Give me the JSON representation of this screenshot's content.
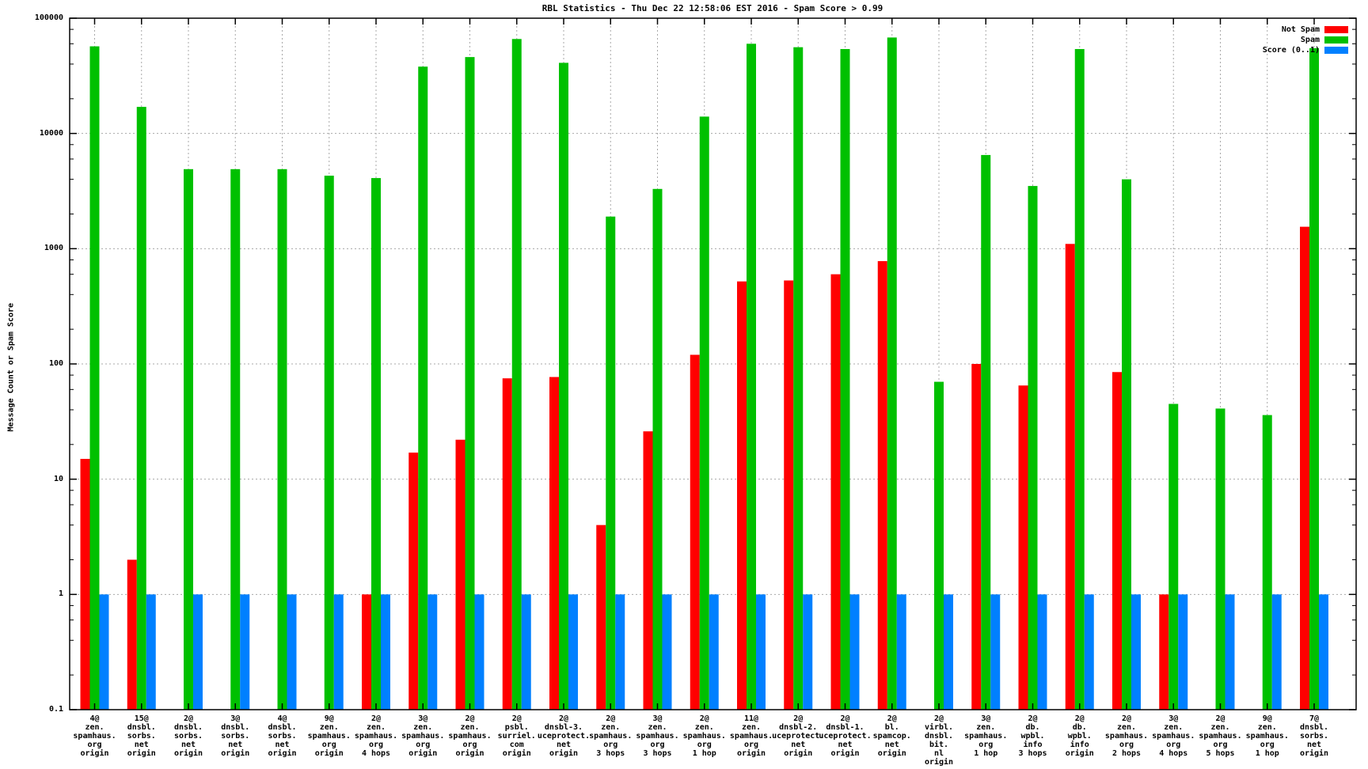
{
  "title": "RBL Statistics - Thu Dec 22 12:58:06 EST 2016 - Spam Score > 0.99",
  "ylabel": "Message Count or Spam Score",
  "legend": [
    {
      "label": "Not Spam",
      "color": "#ff0000"
    },
    {
      "label": "Spam",
      "color": "#00c000"
    },
    {
      "label": "Score (0..1)",
      "color": "#0080ff"
    }
  ],
  "chart_data": {
    "type": "bar",
    "y_scale": "log",
    "ylim": [
      0.1,
      100000
    ],
    "ytick_labels": [
      "100000",
      "10000",
      "1000",
      "100",
      "10",
      "1",
      "0.1"
    ],
    "grid": true,
    "legend_position": "top-right",
    "title": "RBL Statistics - Thu Dec 22 12:58:06 EST 2016 - Spam Score > 0.99",
    "xlabel": "",
    "ylabel": "Message Count or Spam Score",
    "categories": [
      [
        "4@",
        "zen.",
        "spamhaus.",
        "org",
        "origin"
      ],
      [
        "15@",
        "dnsbl.",
        "sorbs.",
        "net",
        "origin"
      ],
      [
        "2@",
        "dnsbl.",
        "sorbs.",
        "net",
        "origin"
      ],
      [
        "3@",
        "dnsbl.",
        "sorbs.",
        "net",
        "origin"
      ],
      [
        "4@",
        "dnsbl.",
        "sorbs.",
        "net",
        "origin"
      ],
      [
        "9@",
        "zen.",
        "spamhaus.",
        "org",
        "origin"
      ],
      [
        "2@",
        "zen.",
        "spamhaus.",
        "org",
        "4 hops"
      ],
      [
        "3@",
        "zen.",
        "spamhaus.",
        "org",
        "origin"
      ],
      [
        "2@",
        "zen.",
        "spamhaus.",
        "org",
        "origin"
      ],
      [
        "2@",
        "psbl.",
        "surriel.",
        "com",
        "origin"
      ],
      [
        "2@",
        "dnsbl-3.",
        "uceprotect.",
        "net",
        "origin"
      ],
      [
        "2@",
        "zen.",
        "spamhaus.",
        "org",
        "3 hops"
      ],
      [
        "3@",
        "zen.",
        "spamhaus.",
        "org",
        "3 hops"
      ],
      [
        "2@",
        "zen.",
        "spamhaus.",
        "org",
        "1 hop"
      ],
      [
        "11@",
        "zen.",
        "spamhaus.",
        "org",
        "origin"
      ],
      [
        "2@",
        "dnsbl-2.",
        "uceprotect.",
        "net",
        "origin"
      ],
      [
        "2@",
        "dnsbl-1.",
        "uceprotect.",
        "net",
        "origin"
      ],
      [
        "2@",
        "bl.",
        "spamcop.",
        "net",
        "origin"
      ],
      [
        "2@",
        "virbl.",
        "dnsbl.",
        "bit.",
        "nl",
        "origin"
      ],
      [
        "3@",
        "zen.",
        "spamhaus.",
        "org",
        "1 hop"
      ],
      [
        "2@",
        "db.",
        "wpbl.",
        "info",
        "3 hops"
      ],
      [
        "2@",
        "db.",
        "wpbl.",
        "info",
        "origin"
      ],
      [
        "2@",
        "zen.",
        "spamhaus.",
        "org",
        "2 hops"
      ],
      [
        "3@",
        "zen.",
        "spamhaus.",
        "org",
        "4 hops"
      ],
      [
        "2@",
        "zen.",
        "spamhaus.",
        "org",
        "5 hops"
      ],
      [
        "9@",
        "zen.",
        "spamhaus.",
        "org",
        "1 hop"
      ],
      [
        "7@",
        "dnsbl.",
        "sorbs.",
        "net",
        "origin"
      ]
    ],
    "series": [
      {
        "name": "Not Spam",
        "color": "#ff0000",
        "values": [
          15,
          2,
          null,
          null,
          null,
          null,
          1,
          17,
          22,
          75,
          77,
          4,
          26,
          120,
          520,
          530,
          600,
          780,
          null,
          100,
          65,
          1100,
          85,
          1,
          null,
          null,
          1550
        ]
      },
      {
        "name": "Spam",
        "color": "#00c000",
        "values": [
          57000,
          17000,
          4900,
          4900,
          4900,
          4300,
          4100,
          38000,
          46000,
          66000,
          41000,
          1900,
          3300,
          14000,
          60000,
          56000,
          54000,
          68000,
          70,
          6500,
          3500,
          54000,
          4000,
          45,
          41,
          36,
          55000
        ]
      },
      {
        "name": "Score (0..1)",
        "color": "#0080ff",
        "values": [
          1,
          1,
          1,
          1,
          1,
          1,
          1,
          1,
          1,
          1,
          1,
          1,
          1,
          1,
          1,
          1,
          1,
          1,
          1,
          1,
          1,
          1,
          1,
          1,
          1,
          1,
          1
        ]
      }
    ]
  }
}
